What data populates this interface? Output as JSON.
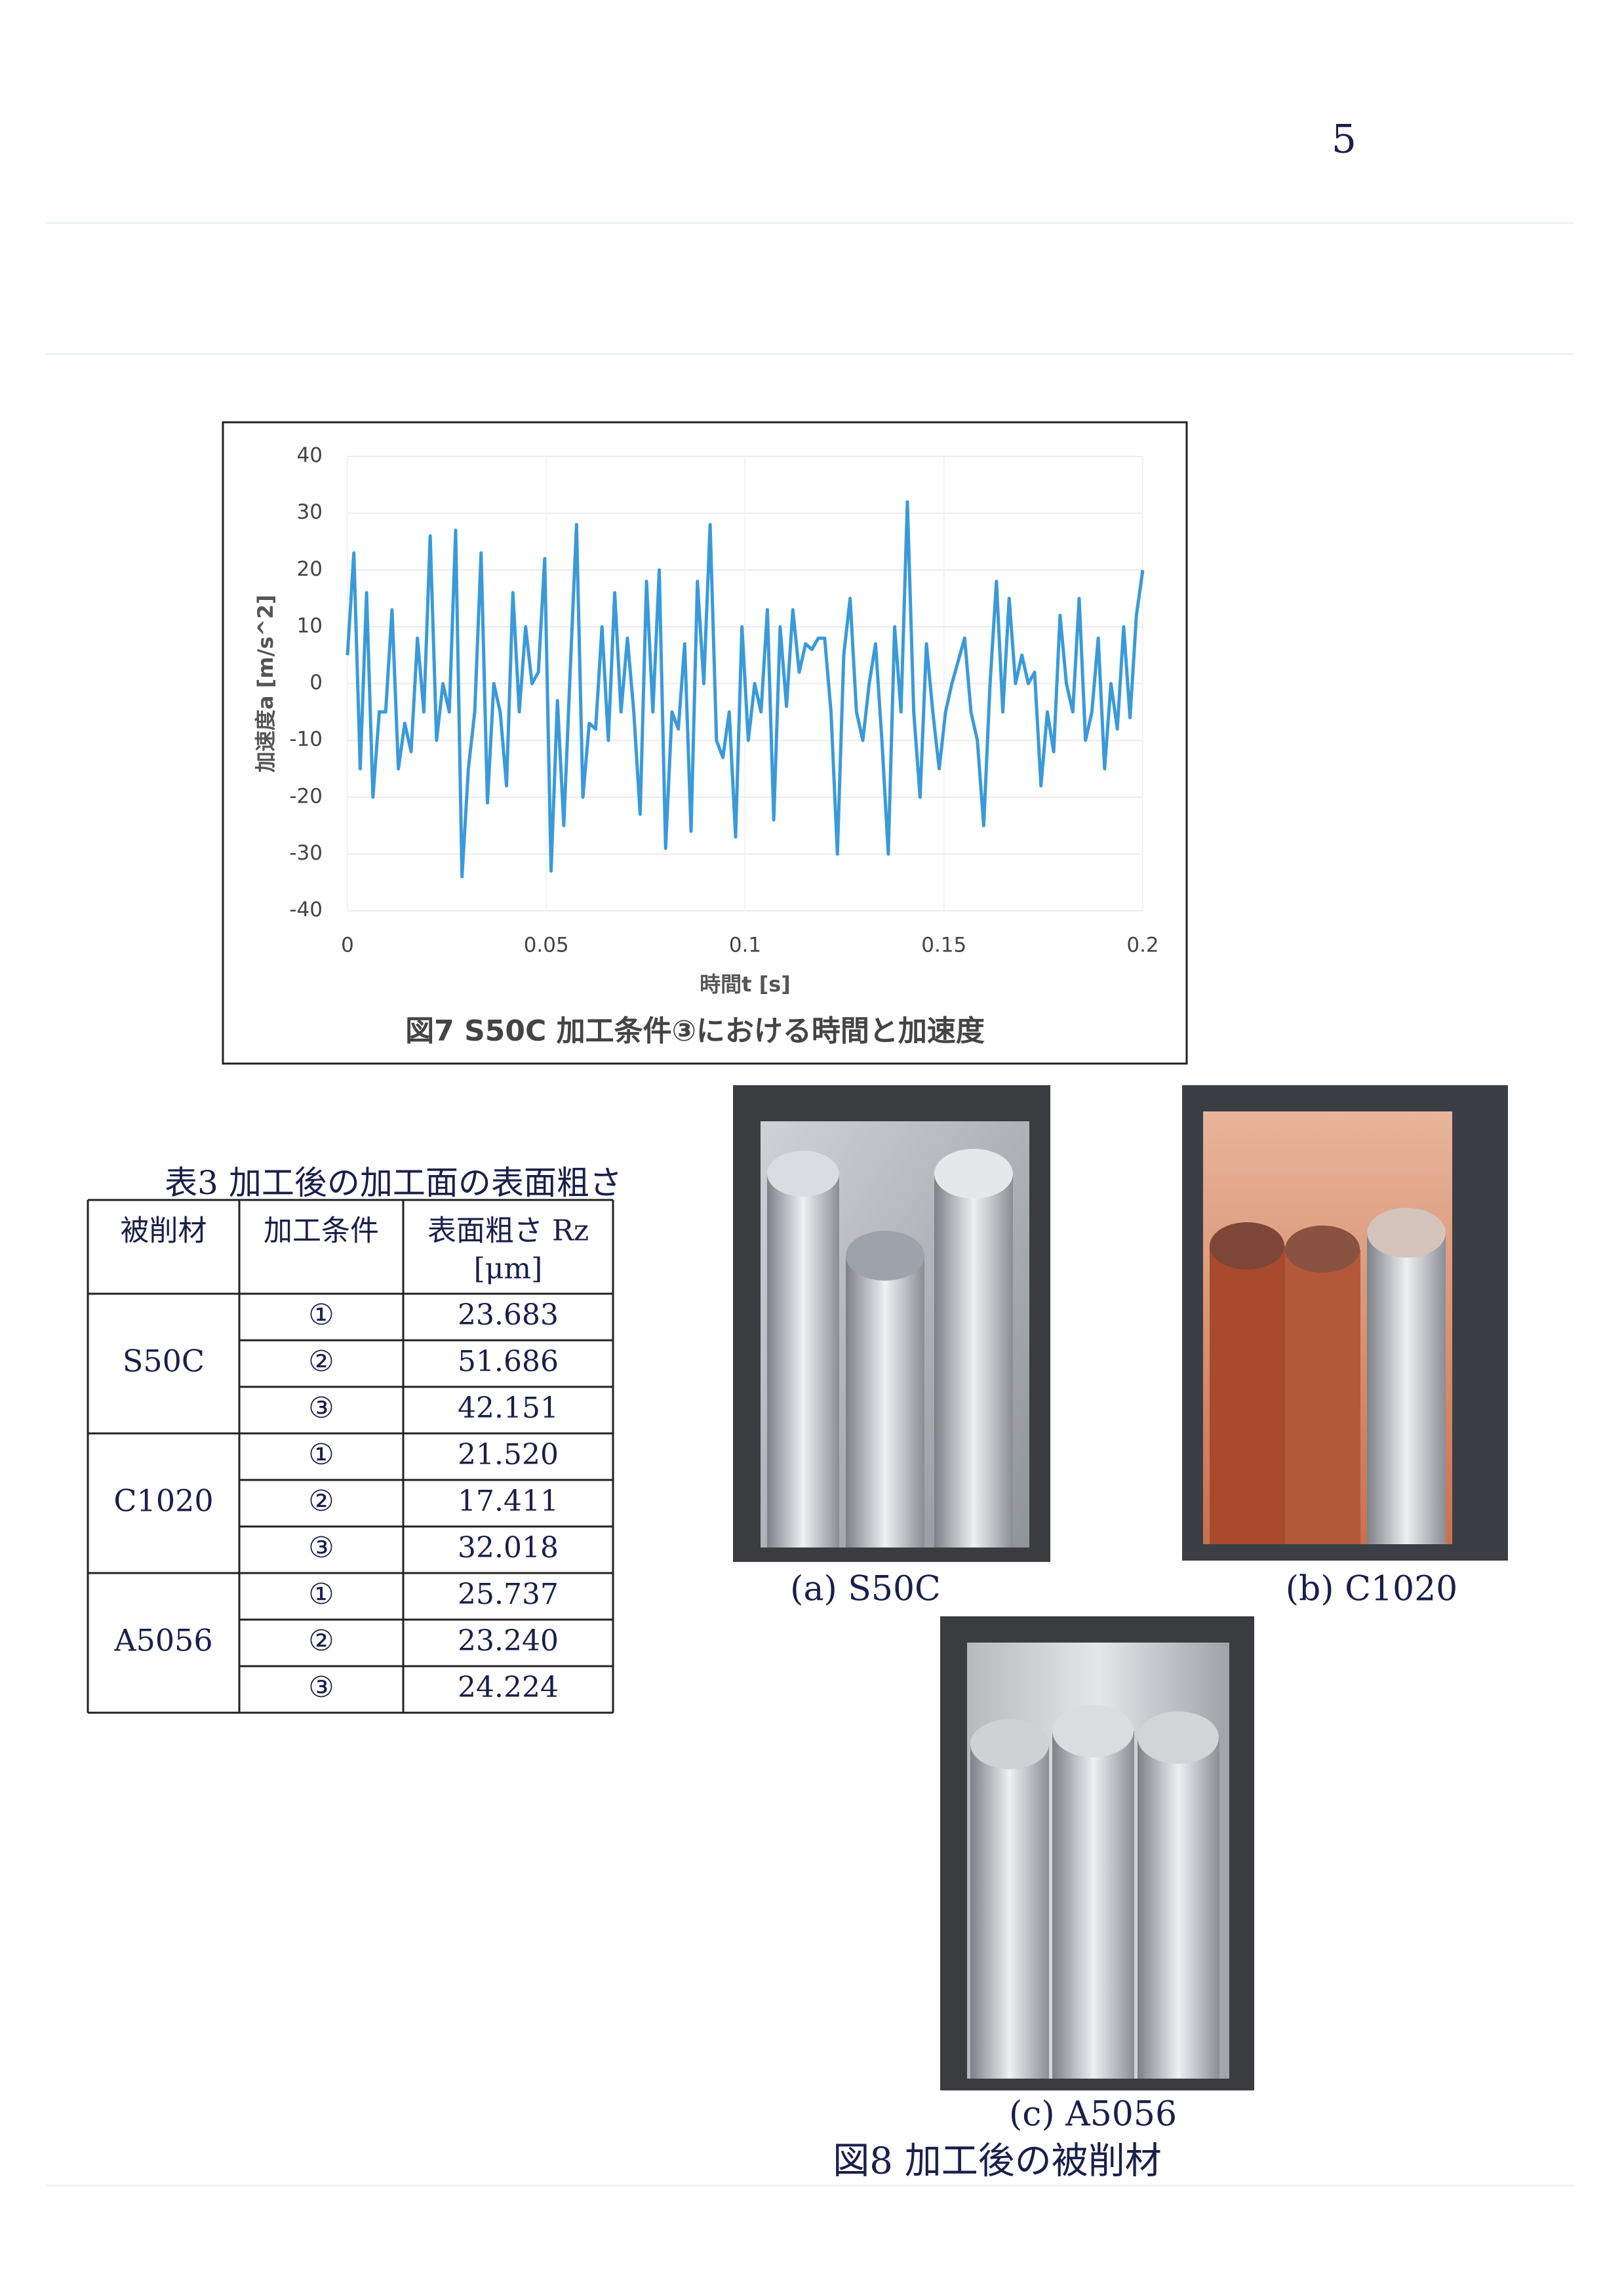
{
  "page_number": "5",
  "chart_data": {
    "type": "line",
    "title": "図7 S50C 加工条件③における時間と加速度",
    "xlabel": "時間t [s]",
    "ylabel": "加速度a [m/s^2]",
    "x": [
      0,
      0.0016,
      0.0032,
      0.0048,
      0.0064,
      0.008,
      0.0096,
      0.0112,
      0.0128,
      0.0144,
      0.016,
      0.0176,
      0.0192,
      0.0208,
      0.0224,
      0.024,
      0.0256,
      0.0272,
      0.0288,
      0.0304,
      0.032,
      0.0336,
      0.0352,
      0.0368,
      0.0384,
      0.04,
      0.0416,
      0.0432,
      0.0448,
      0.0464,
      0.048,
      0.0496,
      0.0512,
      0.0528,
      0.0544,
      0.056,
      0.0576,
      0.0592,
      0.0608,
      0.0624,
      0.064,
      0.0656,
      0.0672,
      0.0688,
      0.0704,
      0.072,
      0.0736,
      0.0752,
      0.0768,
      0.0784,
      0.08,
      0.0816,
      0.0832,
      0.0848,
      0.0864,
      0.088,
      0.0896,
      0.0912,
      0.0928,
      0.0944,
      0.096,
      0.0976,
      0.0992,
      0.1008,
      0.1024,
      0.104,
      0.1056,
      0.1072,
      0.1088,
      0.1104,
      0.112,
      0.1136,
      0.1152,
      0.1168,
      0.1184,
      0.12,
      0.1216,
      0.1232,
      0.1248,
      0.1264,
      0.128,
      0.1296,
      0.1312,
      0.1328,
      0.1344,
      0.136,
      0.1376,
      0.1392,
      0.1408,
      0.1424,
      0.144,
      0.1456,
      0.1472,
      0.1488,
      0.1504,
      0.152,
      0.1536,
      0.1552,
      0.1568,
      0.1584,
      0.16,
      0.1616,
      0.1632,
      0.1648,
      0.1664,
      0.168,
      0.1696,
      0.1712,
      0.1728,
      0.1744,
      0.176,
      0.1776,
      0.1792,
      0.1808,
      0.1824,
      0.184,
      0.1856,
      0.1872,
      0.1888,
      0.1904,
      0.192,
      0.1936,
      0.1952,
      0.1968,
      0.1984,
      0.2
    ],
    "values": [
      5,
      23,
      -15,
      16,
      -20,
      -5,
      -5,
      13,
      -15,
      -7,
      -12,
      8,
      -5,
      26,
      -10,
      0,
      -5,
      27,
      -34,
      -15,
      -5,
      23,
      -21,
      0,
      -5,
      -18,
      16,
      -5,
      10,
      0,
      2,
      22,
      -33,
      -3,
      -25,
      2,
      28,
      -20,
      -7,
      -8,
      10,
      -10,
      16,
      -5,
      8,
      -5,
      -23,
      18,
      -5,
      20,
      -29,
      -5,
      -8,
      7,
      -26,
      18,
      0,
      28,
      -10,
      -13,
      -5,
      -27,
      10,
      -10,
      0,
      -5,
      13,
      -24,
      10,
      -4,
      13,
      2,
      7,
      6,
      8,
      8,
      -5,
      -30,
      5,
      15,
      -5,
      -10,
      0,
      7,
      -10,
      -30,
      10,
      -5,
      32,
      -5,
      -20,
      7,
      -5,
      -15,
      -5,
      0,
      4,
      8,
      -5,
      -10,
      -25,
      0,
      18,
      -5,
      15,
      0,
      5,
      0,
      2,
      -18,
      -5,
      -12,
      12,
      0,
      -5,
      15,
      -10,
      -5,
      8,
      -15,
      0,
      -8,
      10,
      -6,
      12,
      20
    ],
    "color": "#3a9ad9",
    "xlim": [
      0,
      0.2
    ],
    "ylim": [
      -40,
      40
    ],
    "xticks": [
      0,
      0.05,
      0.1,
      0.15,
      0.2
    ],
    "yticks": [
      -40,
      -30,
      -20,
      -10,
      0,
      10,
      20,
      30,
      40
    ],
    "grid": true
  },
  "table": {
    "caption": "表3 加工後の加工面の表面粗さ",
    "headers": [
      "被削材",
      "加工条件",
      [
        "表面粗さ Rz",
        "[μm]"
      ]
    ],
    "groups": [
      {
        "material": "S50C",
        "rows": [
          [
            "①",
            "23.683"
          ],
          [
            "②",
            "51.686"
          ],
          [
            "③",
            "42.151"
          ]
        ]
      },
      {
        "material": "C1020",
        "rows": [
          [
            "①",
            "21.520"
          ],
          [
            "②",
            "17.411"
          ],
          [
            "③",
            "32.018"
          ]
        ]
      },
      {
        "material": "A5056",
        "rows": [
          [
            "①",
            "25.737"
          ],
          [
            "②",
            "23.240"
          ],
          [
            "③",
            "24.224"
          ]
        ]
      }
    ]
  },
  "figure": {
    "captions": [
      "(a) S50C",
      "(b) C1020",
      "(c) A5056"
    ],
    "title": "図8 加工後の被削材"
  }
}
